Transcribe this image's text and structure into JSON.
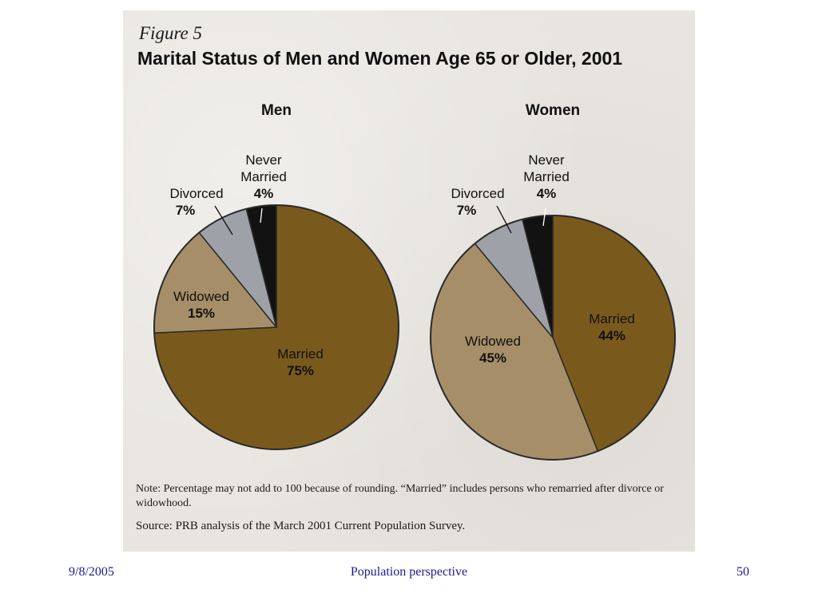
{
  "figure": {
    "label": "Figure 5",
    "title": "Marital Status of Men and Women Age 65 or Older, 2001"
  },
  "colors": {
    "married": "#7a5a1c",
    "widowed": "#a68f68",
    "divorced": "#9ea1a8",
    "never_married": "#121212",
    "outline": "#2a2a2a"
  },
  "chart_data": [
    {
      "type": "pie",
      "title": "Men",
      "slices": [
        {
          "label": "Married",
          "value": 75,
          "display": "75%"
        },
        {
          "label": "Widowed",
          "value": 15,
          "display": "15%"
        },
        {
          "label": "Divorced",
          "value": 7,
          "display": "7%"
        },
        {
          "label": "Never Married",
          "value": 4,
          "display": "4%"
        }
      ]
    },
    {
      "type": "pie",
      "title": "Women",
      "slices": [
        {
          "label": "Married",
          "value": 44,
          "display": "44%"
        },
        {
          "label": "Widowed",
          "value": 45,
          "display": "45%"
        },
        {
          "label": "Divorced",
          "value": 7,
          "display": "7%"
        },
        {
          "label": "Never Married",
          "value": 4,
          "display": "4%"
        }
      ]
    }
  ],
  "note": "Note: Percentage may not add to 100 because of rounding. “Married” includes persons who remarried after divorce or widowhood.",
  "source": "Source: PRB analysis of the March 2001 Current Population Survey.",
  "footer": {
    "date": "9/8/2005",
    "title": "Population perspective",
    "page": "50"
  }
}
